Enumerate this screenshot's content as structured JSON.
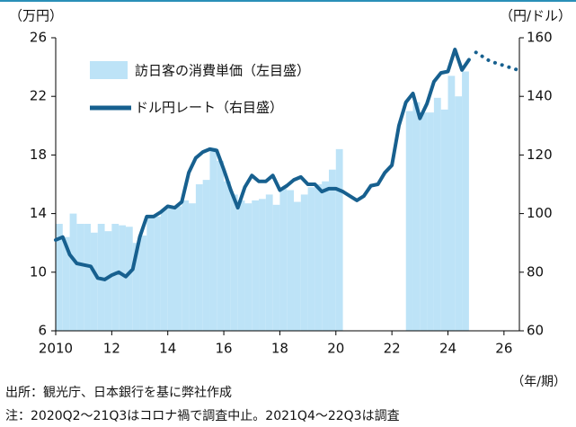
{
  "chart_data": {
    "type": "bar_line",
    "left_unit": "（万円）",
    "right_unit": "（円/ドル）",
    "x_unit": "（年/期）",
    "source": "出所：観光庁、日本銀行を基に弊社作成",
    "note": "注：2020Q2～21Q3はコロナ禍で調査中止。2021Q4～22Q3は調査",
    "xlim": [
      2010,
      2026.55
    ],
    "xticks": [
      2010,
      {
        "value": 2012,
        "label": "12"
      },
      {
        "value": 2014,
        "label": "14"
      },
      {
        "value": 2016,
        "label": "16"
      },
      {
        "value": 2018,
        "label": "18"
      },
      {
        "value": 2020,
        "label": "20"
      },
      {
        "value": 2022,
        "label": "22"
      },
      {
        "value": 2024,
        "label": "24"
      },
      {
        "value": 2026,
        "label": "26"
      }
    ],
    "ylim": [
      6,
      26
    ],
    "yticks": [
      6,
      10,
      14,
      18,
      22,
      26
    ],
    "y2lim": [
      60,
      160
    ],
    "y2ticks": [
      60,
      80,
      100,
      120,
      140,
      160
    ],
    "series": [
      {
        "name": "訪日客の消費単価（左目盛）",
        "kind": "bar",
        "color": "#bde3f7",
        "x": [
          2010,
          2010.25,
          2010.5,
          2010.75,
          2011,
          2011.25,
          2011.5,
          2011.75,
          2012,
          2012.25,
          2012.5,
          2012.75,
          2013,
          2013.25,
          2013.5,
          2013.75,
          2014,
          2014.25,
          2014.5,
          2014.75,
          2015,
          2015.25,
          2015.5,
          2015.75,
          2016,
          2016.25,
          2016.5,
          2016.75,
          2017,
          2017.25,
          2017.5,
          2017.75,
          2018,
          2018.25,
          2018.5,
          2018.75,
          2019,
          2019.25,
          2019.5,
          2019.75,
          2020,
          2022.5,
          2022.75,
          2023,
          2023.25,
          2023.5,
          2023.75,
          2024,
          2024.25,
          2024.5
        ],
        "values": [
          13.3,
          12.4,
          14.0,
          13.3,
          13.3,
          12.7,
          13.3,
          12.8,
          13.3,
          13.2,
          13.1,
          12.0,
          12.5,
          13.7,
          13.8,
          14.3,
          14.4,
          14.5,
          14.9,
          14.7,
          16.0,
          16.3,
          18.5,
          17.6,
          16.2,
          15.3,
          14.9,
          14.7,
          14.9,
          15.0,
          15.3,
          14.6,
          15.7,
          15.6,
          14.8,
          15.3,
          15.8,
          16.0,
          16.2,
          17.0,
          18.4,
          21.0,
          21.6,
          20.9,
          20.9,
          21.9,
          21.1,
          23.4,
          22.0,
          23.7
        ]
      },
      {
        "name": "ドル円レート（右目盛）",
        "kind": "line",
        "axis": "y2",
        "color": "#17608f",
        "x": [
          2010,
          2010.25,
          2010.5,
          2010.75,
          2011,
          2011.25,
          2011.5,
          2011.75,
          2012,
          2012.25,
          2012.5,
          2012.75,
          2013,
          2013.25,
          2013.5,
          2013.75,
          2014,
          2014.25,
          2014.5,
          2014.75,
          2015,
          2015.25,
          2015.5,
          2015.75,
          2016,
          2016.25,
          2016.5,
          2016.75,
          2017,
          2017.25,
          2017.5,
          2017.75,
          2018,
          2018.25,
          2018.5,
          2018.75,
          2019,
          2019.25,
          2019.5,
          2019.75,
          2020,
          2020.25,
          2020.5,
          2020.75,
          2021,
          2021.25,
          2021.5,
          2021.75,
          2022,
          2022.25,
          2022.5,
          2022.75,
          2023,
          2023.25,
          2023.5,
          2023.75,
          2024,
          2024.25,
          2024.5,
          2024.75
        ],
        "values": [
          91,
          92,
          86,
          83,
          82.5,
          82,
          78,
          77.5,
          79,
          80,
          78.5,
          81,
          92,
          99,
          99,
          100.5,
          102.5,
          102,
          104,
          114,
          119,
          121,
          122,
          121.5,
          115,
          108,
          102,
          109,
          113,
          111,
          111,
          113,
          108,
          109.5,
          111.5,
          112.5,
          110,
          110,
          107.5,
          108.5,
          108.5,
          107.5,
          106,
          104.5,
          106,
          109.5,
          110,
          114,
          116.5,
          130,
          138,
          141,
          132.5,
          137.5,
          145,
          148,
          148.5,
          156,
          149,
          152.5
        ]
      }
    ],
    "forecast": {
      "axis": "y2",
      "color": "#17608f",
      "x": [
        2025,
        2025.5,
        2026,
        2026.5
      ],
      "values": [
        155,
        152,
        150.5,
        149
      ]
    }
  }
}
